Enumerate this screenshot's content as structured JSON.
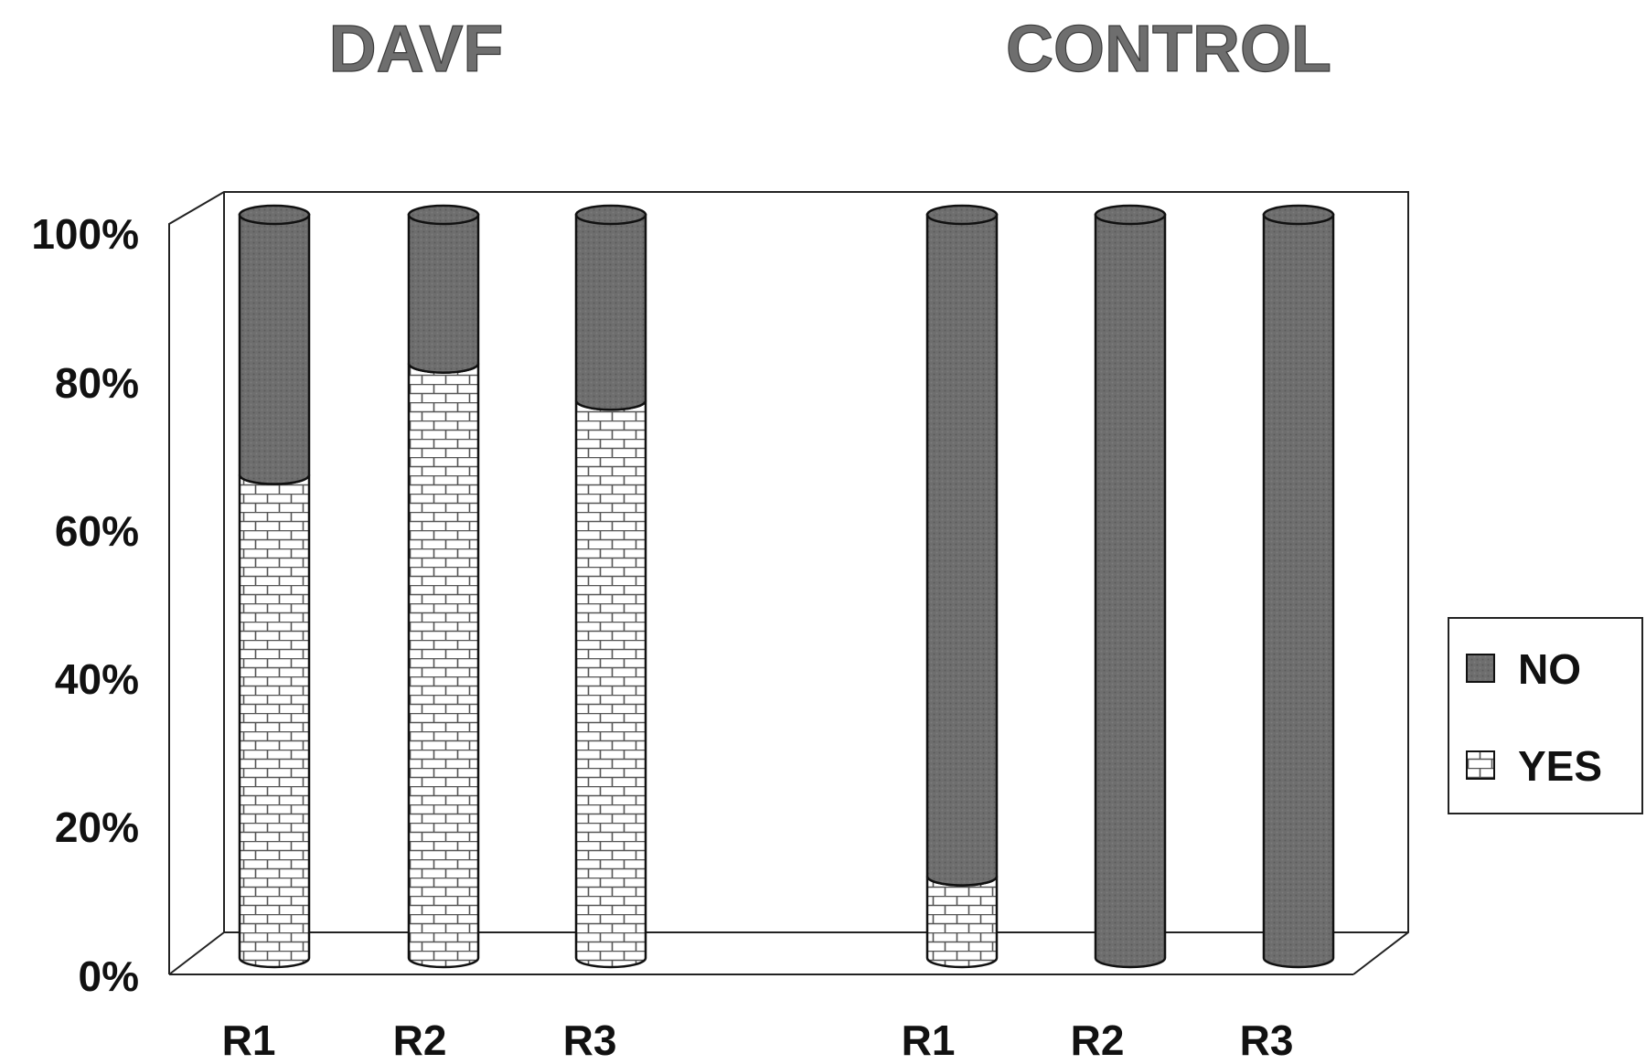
{
  "chart_data": {
    "type": "bar",
    "stacked": true,
    "percent_stacked": true,
    "style": "3d-cylinder",
    "groups": [
      {
        "label": "DAVF",
        "categories": [
          "R1",
          "R2",
          "R3"
        ]
      },
      {
        "label": "CONTROL",
        "categories": [
          "R1",
          "R2",
          "R3"
        ]
      }
    ],
    "series": [
      {
        "name": "YES",
        "pattern": "brick",
        "color": "#ffffff",
        "values": [
          65,
          80,
          75,
          11,
          0,
          0
        ]
      },
      {
        "name": "NO",
        "pattern": "dark-gray",
        "color": "#6b6b6b",
        "values": [
          35,
          20,
          25,
          89,
          100,
          100
        ]
      }
    ],
    "y_ticks": [
      "0%",
      "20%",
      "40%",
      "60%",
      "80%",
      "100%"
    ],
    "ylim": [
      0,
      100
    ],
    "grid": false,
    "legend": {
      "position": "right",
      "entries": [
        "NO",
        "YES"
      ]
    }
  }
}
